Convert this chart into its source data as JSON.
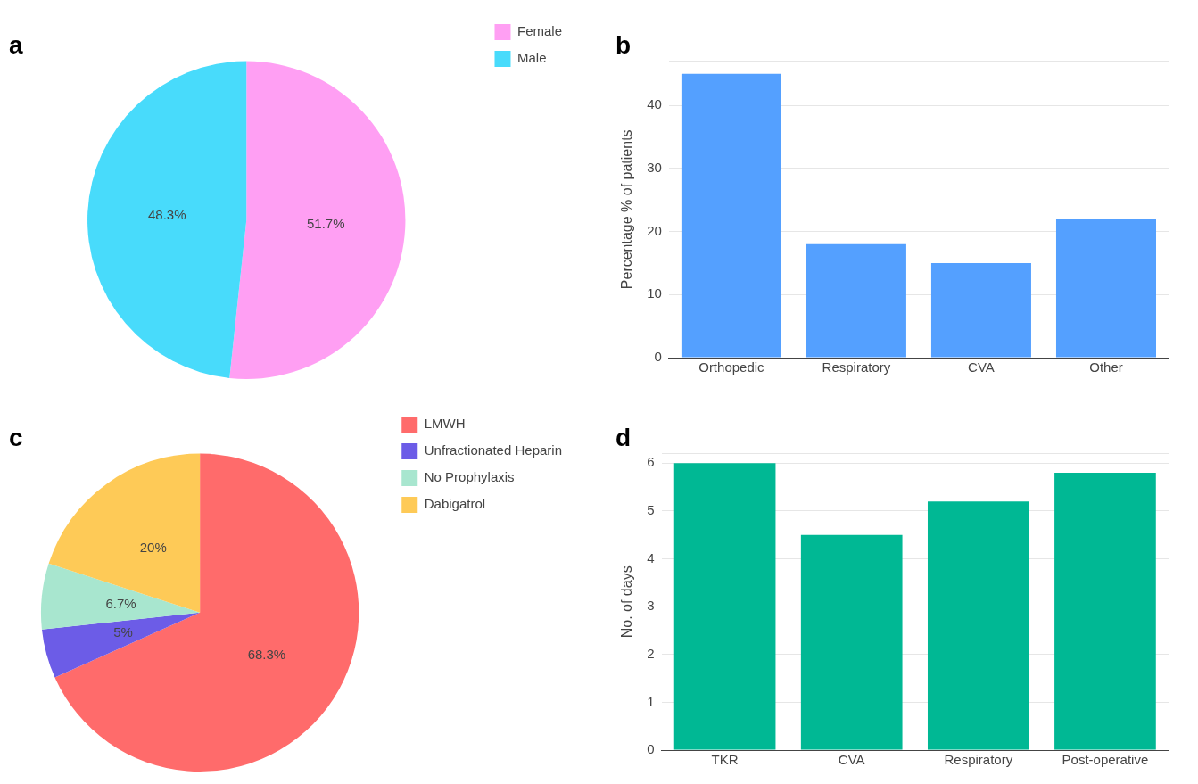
{
  "chart_data": [
    {
      "type": "pie",
      "title": "a",
      "categories": [
        "Female",
        "Male"
      ],
      "values": [
        51.7,
        48.3
      ],
      "value_labels": [
        "51.7%",
        "48.3%"
      ],
      "colors": [
        "#ff9ff3",
        "#48dbfb"
      ],
      "legend": "right"
    },
    {
      "type": "bar",
      "title": "b",
      "ylabel": "Percentage % of patients",
      "categories": [
        "Orthopedic",
        "Respiratory",
        "CVA",
        "Other"
      ],
      "values": [
        45,
        18,
        15,
        22
      ],
      "color": "#54a0ff",
      "ylim": [
        0,
        47
      ],
      "yticks": [
        0,
        10,
        20,
        30,
        40,
        {
          "value": 47,
          "label": null
        }
      ],
      "grid": "y",
      "legend": false
    },
    {
      "type": "pie",
      "title": "c",
      "categories": [
        "LMWH",
        "Unfractionated Heparin",
        "No Prophylaxis",
        "Dabigatrol"
      ],
      "values": [
        68.3,
        5,
        6.7,
        20
      ],
      "value_labels": [
        "68.3%",
        "5%",
        "6.7%",
        "20%"
      ],
      "colors": [
        "#ff6b6b",
        "#6c5ce7",
        "#a8e6cf",
        "#feca57"
      ],
      "legend": "right"
    },
    {
      "type": "bar",
      "title": "d",
      "ylabel": "No. of days",
      "categories": [
        "TKR",
        "CVA",
        "Respiratory",
        "Post-operative"
      ],
      "values": [
        6,
        4.5,
        5.2,
        5.8
      ],
      "color": "#00b894",
      "ylim": [
        0,
        6.2
      ],
      "yticks": [
        0,
        1,
        2,
        3,
        4,
        5,
        6,
        {
          "value": 6.2,
          "label": null
        }
      ],
      "grid": "y",
      "legend": false
    }
  ]
}
